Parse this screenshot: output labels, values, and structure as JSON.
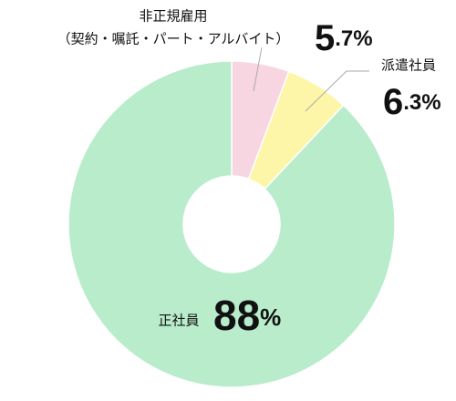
{
  "chart_data": {
    "type": "donut",
    "categories": [
      [
        "非正規雇用",
        "（契約・嘱託・パート・アルバイト）"
      ],
      [
        "派遣社員"
      ],
      [
        "正社員"
      ]
    ],
    "values": [
      5.7,
      6.3,
      88
    ],
    "value_labels": [
      "5.7%",
      "6.3%",
      "88%"
    ],
    "colors": [
      "#f7d5e1",
      "#fdf6a8",
      "#b8eccb"
    ]
  }
}
